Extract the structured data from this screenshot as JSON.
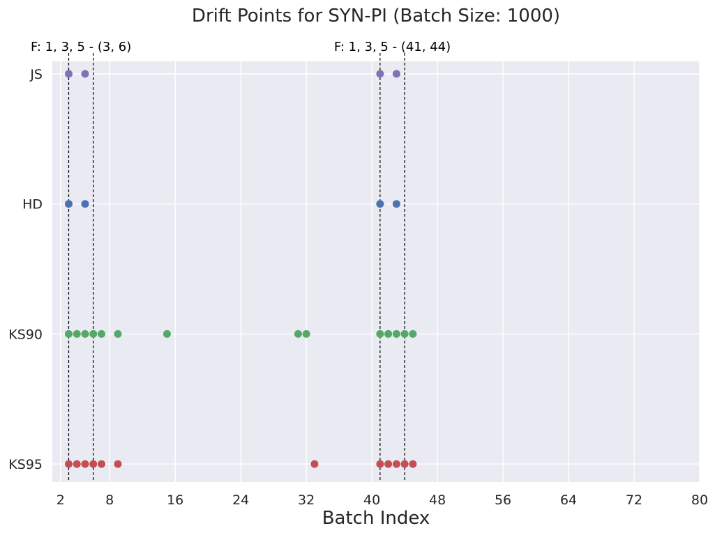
{
  "chart_data": {
    "type": "scatter",
    "title": "Drift Points for SYN-PI (Batch Size: 1000)",
    "xlabel": "Batch Index",
    "ylabel": "",
    "xlim": [
      1,
      80
    ],
    "xticks": [
      2,
      8,
      16,
      24,
      32,
      40,
      48,
      56,
      64,
      72,
      80
    ],
    "categories": [
      "JS",
      "HD",
      "KS90",
      "KS95"
    ],
    "grid": true,
    "series": [
      {
        "name": "JS",
        "color": "#8172b3",
        "x": [
          3,
          5,
          41,
          43
        ]
      },
      {
        "name": "HD",
        "color": "#4c72b0",
        "x": [
          3,
          5,
          41,
          43
        ]
      },
      {
        "name": "KS90",
        "color": "#55a868",
        "x": [
          3,
          4,
          5,
          6,
          7,
          9,
          15,
          31,
          32,
          41,
          42,
          43,
          44,
          45
        ]
      },
      {
        "name": "KS95",
        "color": "#c44e52",
        "x": [
          3,
          4,
          5,
          6,
          7,
          9,
          33,
          41,
          42,
          43,
          44,
          45
        ]
      }
    ],
    "drift_windows": [
      {
        "label": "F: 1, 3, 5 - (3, 6)",
        "start": 3,
        "end": 6
      },
      {
        "label": "F: 1, 3, 5 - (41, 44)",
        "start": 41,
        "end": 44
      }
    ]
  }
}
